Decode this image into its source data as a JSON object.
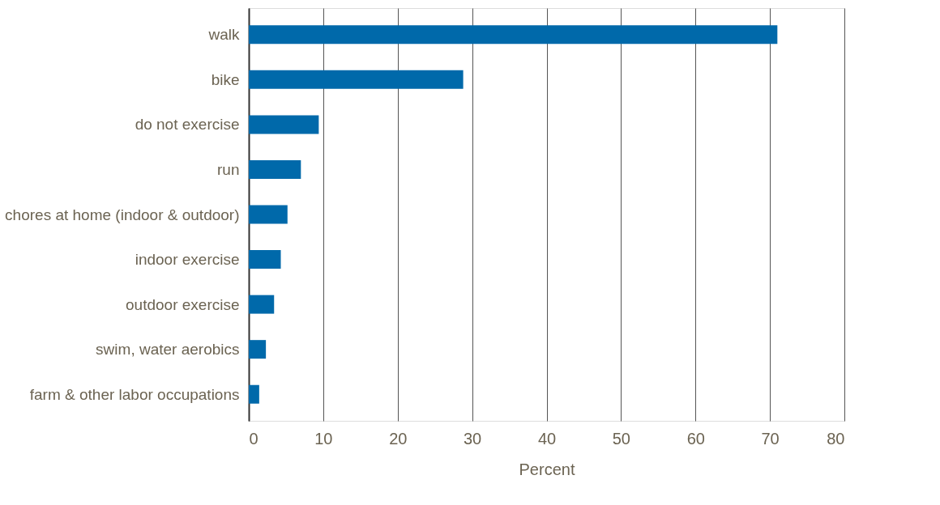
{
  "chart_data": {
    "type": "bar",
    "orientation": "horizontal",
    "xlabel": "Percent",
    "categories": [
      "walk",
      "bike",
      "do not exercise",
      "run",
      "chores at home (indoor & outdoor)",
      "indoor exercise",
      "outdoor exercise",
      "swim, water aerobics",
      "farm & other labor occupations"
    ],
    "values": [
      71.0,
      28.8,
      9.4,
      7.0,
      5.2,
      4.3,
      3.4,
      2.3,
      1.4
    ],
    "color": "#0069aa",
    "xlim": [
      0,
      80
    ],
    "xticks": [
      0,
      10,
      20,
      30,
      40,
      50,
      60,
      70,
      80
    ],
    "grid": "x"
  }
}
